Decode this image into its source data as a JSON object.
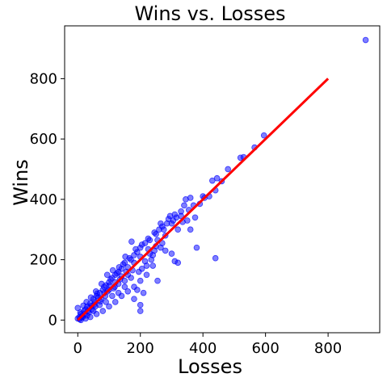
{
  "chart_data": {
    "type": "scatter",
    "title": "Wins vs. Losses",
    "xlabel": "Losses",
    "ylabel": "Wins",
    "xlim": [
      -42,
      965
    ],
    "ylim": [
      -42,
      975
    ],
    "xticks": [
      0,
      200,
      400,
      600,
      800
    ],
    "yticks": [
      0,
      200,
      400,
      600,
      800
    ],
    "grid": false,
    "legend": "none",
    "point_color": "#0000ff",
    "line_color": "#ff0000",
    "fit_line": {
      "x": [
        0,
        800
      ],
      "y": [
        0,
        800
      ]
    },
    "points": [
      [
        920,
        928
      ],
      [
        595,
        612
      ],
      [
        565,
        572
      ],
      [
        530,
        540
      ],
      [
        520,
        538
      ],
      [
        480,
        500
      ],
      [
        460,
        460
      ],
      [
        445,
        470
      ],
      [
        430,
        462
      ],
      [
        440,
        430
      ],
      [
        440,
        205
      ],
      [
        420,
        410
      ],
      [
        405,
        405
      ],
      [
        400,
        410
      ],
      [
        360,
        405
      ],
      [
        345,
        400
      ],
      [
        390,
        385
      ],
      [
        375,
        340
      ],
      [
        330,
        360
      ],
      [
        310,
        350
      ],
      [
        290,
        335
      ],
      [
        300,
        320
      ],
      [
        270,
        310
      ],
      [
        250,
        285
      ],
      [
        230,
        265
      ],
      [
        260,
        300
      ],
      [
        280,
        280
      ],
      [
        285,
        320
      ],
      [
        320,
        300
      ],
      [
        250,
        245
      ],
      [
        230,
        220
      ],
      [
        215,
        255
      ],
      [
        200,
        240
      ],
      [
        190,
        225
      ],
      [
        180,
        215
      ],
      [
        170,
        200
      ],
      [
        150,
        190
      ],
      [
        160,
        175
      ],
      [
        140,
        170
      ],
      [
        130,
        160
      ],
      [
        120,
        150
      ],
      [
        110,
        140
      ],
      [
        100,
        125
      ],
      [
        90,
        115
      ],
      [
        80,
        100
      ],
      [
        70,
        90
      ],
      [
        60,
        80
      ],
      [
        50,
        70
      ],
      [
        40,
        55
      ],
      [
        30,
        45
      ],
      [
        20,
        30
      ],
      [
        10,
        20
      ],
      [
        5,
        10
      ],
      [
        0,
        5
      ],
      [
        0,
        40
      ],
      [
        10,
        0
      ],
      [
        25,
        5
      ],
      [
        40,
        10
      ],
      [
        60,
        20
      ],
      [
        80,
        30
      ],
      [
        100,
        45
      ],
      [
        120,
        60
      ],
      [
        140,
        80
      ],
      [
        160,
        95
      ],
      [
        180,
        110
      ],
      [
        200,
        130
      ],
      [
        220,
        150
      ],
      [
        240,
        180
      ],
      [
        210,
        90
      ],
      [
        200,
        50
      ],
      [
        200,
        30
      ],
      [
        180,
        70
      ],
      [
        190,
        100
      ],
      [
        150,
        110
      ],
      [
        130,
        90
      ],
      [
        110,
        80
      ],
      [
        90,
        60
      ],
      [
        70,
        50
      ],
      [
        50,
        30
      ],
      [
        30,
        15
      ],
      [
        300,
        220
      ],
      [
        310,
        195
      ],
      [
        320,
        190
      ],
      [
        280,
        230
      ],
      [
        255,
        130
      ],
      [
        240,
        215
      ],
      [
        220,
        180
      ],
      [
        205,
        170
      ],
      [
        170,
        140
      ],
      [
        150,
        130
      ],
      [
        130,
        120
      ],
      [
        115,
        105
      ],
      [
        95,
        95
      ],
      [
        75,
        70
      ],
      [
        55,
        60
      ],
      [
        45,
        35
      ],
      [
        35,
        25
      ],
      [
        25,
        35
      ],
      [
        15,
        15
      ],
      [
        8,
        25
      ],
      [
        62,
        88
      ],
      [
        84,
        110
      ],
      [
        105,
        135
      ],
      [
        125,
        155
      ],
      [
        145,
        185
      ],
      [
        165,
        205
      ],
      [
        185,
        235
      ],
      [
        205,
        250
      ],
      [
        225,
        270
      ],
      [
        245,
        290
      ],
      [
        265,
        320
      ],
      [
        275,
        300
      ],
      [
        295,
        345
      ],
      [
        305,
        330
      ],
      [
        315,
        340
      ],
      [
        330,
        345
      ],
      [
        340,
        380
      ],
      [
        355,
        365
      ],
      [
        370,
        380
      ],
      [
        265,
        240
      ],
      [
        245,
        230
      ],
      [
        225,
        235
      ],
      [
        200,
        210
      ],
      [
        180,
        190
      ],
      [
        160,
        150
      ],
      [
        140,
        145
      ],
      [
        120,
        125
      ],
      [
        100,
        100
      ],
      [
        85,
        90
      ],
      [
        65,
        75
      ],
      [
        52,
        50
      ],
      [
        38,
        42
      ],
      [
        22,
        20
      ],
      [
        12,
        8
      ],
      [
        6,
        3
      ],
      [
        18,
        48
      ],
      [
        28,
        60
      ],
      [
        42,
        75
      ],
      [
        58,
        95
      ],
      [
        76,
        120
      ],
      [
        94,
        150
      ],
      [
        112,
        165
      ],
      [
        132,
        175
      ],
      [
        152,
        210
      ],
      [
        172,
        260
      ],
      [
        360,
        300
      ],
      [
        380,
        240
      ],
      [
        350,
        330
      ],
      [
        335,
        325
      ],
      [
        270,
        255
      ],
      [
        255,
        265
      ],
      [
        235,
        200
      ],
      [
        215,
        195
      ],
      [
        195,
        160
      ],
      [
        175,
        165
      ],
      [
        155,
        160
      ],
      [
        135,
        135
      ],
      [
        118,
        110
      ],
      [
        102,
        115
      ],
      [
        88,
        80
      ],
      [
        72,
        62
      ],
      [
        56,
        45
      ],
      [
        44,
        48
      ],
      [
        32,
        30
      ],
      [
        16,
        10
      ]
    ]
  }
}
